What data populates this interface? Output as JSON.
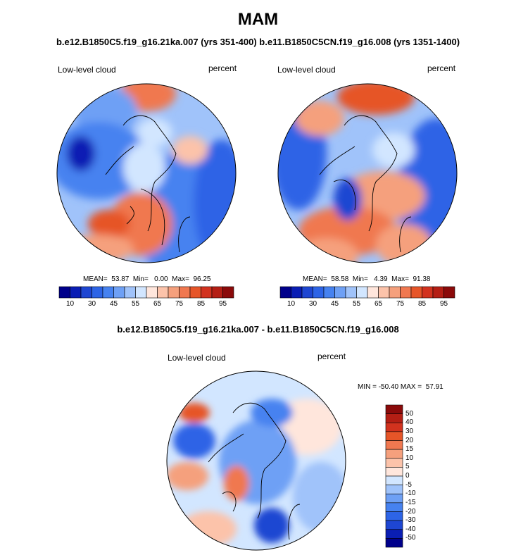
{
  "title": "MAM",
  "cases_title": "b.e12.B1850C5.f19_g16.21ka.007 (yrs 351-400) b.e11.B1850C5CN.f19_g16.008 (yrs 1351-1400)",
  "diff_title": "b.e12.B1850C5.f19_g16.21ka.007 - b.e11.B1850C5CN.f19_g16.008",
  "panels": [
    {
      "left_label": "Low-level cloud",
      "right_label": "percent",
      "stats": "MEAN=  53.87  Min=   0.00  Max=  96.25"
    },
    {
      "left_label": "Low-level cloud",
      "right_label": "percent",
      "stats": "MEAN=  58.58  Min=   4.39  Max=  91.38"
    }
  ],
  "diff_panel": {
    "left_label": "Low-level cloud",
    "right_label": "percent",
    "stats": "MIN = -50.40 MAX =  57.91"
  },
  "colorbar": {
    "colors": [
      "#00008b",
      "#0a1eb4",
      "#1e46d2",
      "#2d64e6",
      "#4682f0",
      "#6ea0f5",
      "#a0c3fa",
      "#d2e6ff",
      "#ffe6dc",
      "#fcc3aa",
      "#f5a07d",
      "#f07850",
      "#e65528",
      "#d2321e",
      "#b41e14",
      "#8b0a0a"
    ],
    "labels": [
      "10",
      "30",
      "45",
      "55",
      "65",
      "75",
      "85",
      "95"
    ]
  },
  "diff_colorbar": {
    "colors": [
      "#8b0a0a",
      "#b41e14",
      "#d2321e",
      "#e65528",
      "#f07850",
      "#f5a07d",
      "#fcc3aa",
      "#ffe6dc",
      "#d2e6ff",
      "#a0c3fa",
      "#6ea0f5",
      "#4682f0",
      "#2d64e6",
      "#1e46d2",
      "#0a1eb4",
      "#00008b"
    ],
    "labels": [
      "50",
      "40",
      "30",
      "20",
      "15",
      "10",
      "5",
      "0",
      "-5",
      "-10",
      "-15",
      "-20",
      "-30",
      "-40",
      "-50"
    ]
  }
}
